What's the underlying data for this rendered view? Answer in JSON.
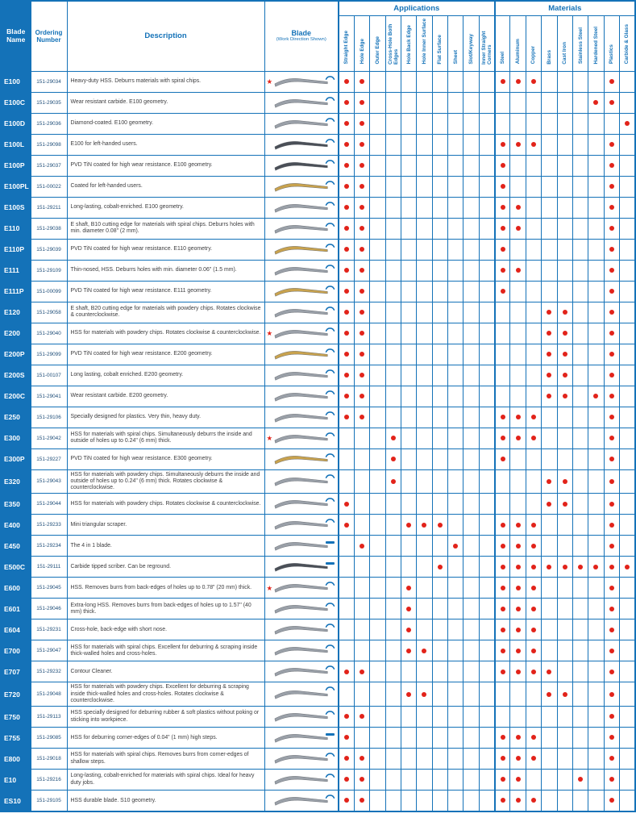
{
  "colors": {
    "accent": "#1472b8",
    "dot": "#e2231a",
    "star": "#e2231a",
    "name_bg": "#1472b8",
    "blade_steel": "#9aa0a8",
    "blade_gold": "#c8a24e",
    "blade_dark": "#4a4f57"
  },
  "header": {
    "blade_name": "Blade Name",
    "ordering_number": "Ordering Number",
    "description": "Description",
    "blade": "Blade",
    "blade_sub": "(Work Direction Shown)",
    "applications": "Applications",
    "materials": "Materials"
  },
  "columns": {
    "applications": [
      "Straight Edge",
      "Hole Edge",
      "Outer Edge",
      "Cross-Hole Both Edges",
      "Hole Back Edge",
      "Hole Inner Surface",
      "Flat Surface",
      "Sheet",
      "Slot/Keyway",
      "Inner Straight Corners"
    ],
    "materials": [
      "Steel",
      "Aluminum",
      "Copper",
      "Brass",
      "Cast Iron",
      "Stainless Steel",
      "Hardened Steel",
      "Plastics",
      "Carbide & Glass"
    ]
  },
  "rows": [
    {
      "name": "E100",
      "order": "151-29034",
      "desc": "Heavy-duty HSS. Deburrs materials with spiral chips.",
      "color": "steel",
      "dir": "arc",
      "star": true,
      "apps": [
        0,
        1
      ],
      "mats": [
        0,
        1,
        2,
        7
      ]
    },
    {
      "name": "E100C",
      "order": "151-29035",
      "desc": "Wear resistant carbide. E100 geometry.",
      "color": "steel",
      "dir": "arc",
      "star": false,
      "apps": [
        0,
        1
      ],
      "mats": [
        6,
        7
      ]
    },
    {
      "name": "E100D",
      "order": "151-29036",
      "desc": "Diamond-coated. E100 geometry.",
      "color": "steel",
      "dir": "arc",
      "star": false,
      "apps": [
        0,
        1
      ],
      "mats": [
        8
      ]
    },
    {
      "name": "E100L",
      "order": "151-29098",
      "desc": "E100 for left-handed users.",
      "color": "dark",
      "dir": "arc",
      "star": false,
      "apps": [
        0,
        1
      ],
      "mats": [
        0,
        1,
        2,
        7
      ]
    },
    {
      "name": "E100P",
      "order": "151-29037",
      "desc": "PVD TiN coated for high wear resistance. E100 geometry.",
      "color": "dark",
      "dir": "arc",
      "star": false,
      "apps": [
        0,
        1
      ],
      "mats": [
        0,
        7
      ]
    },
    {
      "name": "E100PL",
      "order": "151-00022",
      "desc": "Coated for left-handed users.",
      "color": "gold",
      "dir": "arc",
      "star": false,
      "apps": [
        0,
        1
      ],
      "mats": [
        0,
        7
      ]
    },
    {
      "name": "E100S",
      "order": "151-29211",
      "desc": "Long-lasting, cobalt-enriched. E100 geometry.",
      "color": "steel",
      "dir": "arc",
      "star": false,
      "apps": [
        0,
        1
      ],
      "mats": [
        0,
        1,
        7
      ]
    },
    {
      "name": "E110",
      "order": "151-29038",
      "desc": "E shaft, B10 cutting edge for materials with spiral chips. Deburrs holes with min. diameter 0.08\" (2 mm).",
      "color": "steel",
      "dir": "arc",
      "star": false,
      "apps": [
        0,
        1
      ],
      "mats": [
        0,
        1,
        7
      ]
    },
    {
      "name": "E110P",
      "order": "151-29039",
      "desc": "PVD TiN coated for high wear resistance. E110 geometry.",
      "color": "gold",
      "dir": "arc",
      "star": false,
      "apps": [
        0,
        1
      ],
      "mats": [
        0,
        7
      ]
    },
    {
      "name": "E111",
      "order": "151-29109",
      "desc": "Thin-nosed, HSS. Deburrs holes with min. diameter 0.06\" (1.5 mm).",
      "color": "steel",
      "dir": "arc",
      "star": false,
      "apps": [
        0,
        1
      ],
      "mats": [
        0,
        1,
        7
      ]
    },
    {
      "name": "E111P",
      "order": "151-00099",
      "desc": "PVD TiN coated for high wear resistance. E111 geometry.",
      "color": "gold",
      "dir": "arc",
      "star": false,
      "apps": [
        0,
        1
      ],
      "mats": [
        0,
        7
      ]
    },
    {
      "name": "E120",
      "order": "151-29058",
      "desc": "E shaft, B20 cutting edge for materials with powdery chips. Rotates clockwise & counterclockwise.",
      "color": "steel",
      "dir": "arc",
      "star": false,
      "apps": [
        0,
        1
      ],
      "mats": [
        3,
        4,
        7
      ]
    },
    {
      "name": "E200",
      "order": "151-29040",
      "desc": "HSS for materials with powdery chips. Rotates clockwise & counterclockwise.",
      "color": "steel",
      "dir": "arc",
      "star": true,
      "apps": [
        0,
        1
      ],
      "mats": [
        3,
        4,
        7
      ]
    },
    {
      "name": "E200P",
      "order": "151-29099",
      "desc": "PVD TiN coated for high wear resistance. E200 geometry.",
      "color": "gold",
      "dir": "arc",
      "star": false,
      "apps": [
        0,
        1
      ],
      "mats": [
        3,
        4,
        7
      ]
    },
    {
      "name": "E200S",
      "order": "151-00107",
      "desc": "Long lasting, cobalt enriched. E200 geometry.",
      "color": "steel",
      "dir": "arc",
      "star": false,
      "apps": [
        0,
        1
      ],
      "mats": [
        3,
        4,
        7
      ]
    },
    {
      "name": "E200C",
      "order": "151-29041",
      "desc": "Wear resistant carbide. E200 geometry.",
      "color": "steel",
      "dir": "arc",
      "star": false,
      "apps": [
        0,
        1
      ],
      "mats": [
        3,
        4,
        6,
        7
      ]
    },
    {
      "name": "E250",
      "order": "151-29106",
      "desc": "Specially designed for plastics. Very thin, heavy duty.",
      "color": "steel",
      "dir": "arc",
      "star": false,
      "apps": [
        0,
        1
      ],
      "mats": [
        0,
        1,
        2,
        7
      ]
    },
    {
      "name": "E300",
      "order": "151-29042",
      "desc": "HSS for materials with spiral chips. Simultaneously deburrs the inside and outside of holes up to 0.24\" (6 mm) thick.",
      "color": "steel",
      "dir": "arc",
      "star": true,
      "apps": [
        3
      ],
      "mats": [
        0,
        1,
        2,
        7
      ]
    },
    {
      "name": "E300P",
      "order": "151-29227",
      "desc": "PVD TiN coated for high wear resistance. E300 geometry.",
      "color": "gold",
      "dir": "arc",
      "star": false,
      "apps": [
        3
      ],
      "mats": [
        0,
        7
      ]
    },
    {
      "name": "E320",
      "order": "151-29043",
      "desc": "HSS for materials with powdery chips. Simultaneously deburrs the inside and outside of holes up to 0.24\" (6 mm) thick. Rotates clockwise & counterclockwise.",
      "color": "steel",
      "dir": "arc",
      "star": false,
      "apps": [
        3
      ],
      "mats": [
        3,
        4,
        7
      ]
    },
    {
      "name": "E350",
      "order": "151-29044",
      "desc": "HSS for materials with powdery chips. Rotates clockwise & counterclockwise.",
      "color": "steel",
      "dir": "arc",
      "star": false,
      "apps": [
        0
      ],
      "mats": [
        3,
        4,
        7
      ]
    },
    {
      "name": "E400",
      "order": "151-29233",
      "desc": "Mini triangular scraper.",
      "color": "steel",
      "dir": "arc",
      "star": false,
      "apps": [
        0,
        4,
        5,
        6
      ],
      "mats": [
        0,
        1,
        2,
        7
      ]
    },
    {
      "name": "E450",
      "order": "151-29234",
      "desc": "The 4 in 1 blade.",
      "color": "steel",
      "dir": "dash",
      "star": false,
      "apps": [
        1,
        7
      ],
      "mats": [
        0,
        1,
        2,
        7
      ]
    },
    {
      "name": "E500C",
      "order": "151-29111",
      "desc": "Carbide tipped scriber. Can be reground.",
      "color": "dark",
      "dir": "dash",
      "star": false,
      "apps": [
        6
      ],
      "mats": [
        0,
        1,
        2,
        3,
        4,
        5,
        6,
        7,
        8
      ]
    },
    {
      "name": "E600",
      "order": "151-29045",
      "desc": "HSS. Removes burrs from back-edges of holes up to 0.78\" (20 mm) thick.",
      "color": "steel",
      "dir": "arc",
      "star": true,
      "apps": [
        4
      ],
      "mats": [
        0,
        1,
        2,
        7
      ]
    },
    {
      "name": "E601",
      "order": "151-29046",
      "desc": "Extra-long HSS. Removes burrs from back-edges of holes up to 1.57\" (40 mm) thick.",
      "color": "steel",
      "dir": "arc",
      "star": false,
      "apps": [
        4
      ],
      "mats": [
        0,
        1,
        2,
        7
      ]
    },
    {
      "name": "E604",
      "order": "151-29231",
      "desc": "Cross-hole, back-edge with short nose.",
      "color": "steel",
      "dir": "arc",
      "star": false,
      "apps": [
        4
      ],
      "mats": [
        0,
        1,
        2,
        7
      ]
    },
    {
      "name": "E700",
      "order": "151-29047",
      "desc": "HSS for materials with spiral chips. Excellent for deburring & scraping inside thick-walled holes and cross-holes.",
      "color": "steel",
      "dir": "arc",
      "star": false,
      "apps": [
        4,
        5
      ],
      "mats": [
        0,
        1,
        2,
        7
      ]
    },
    {
      "name": "E707",
      "order": "151-29232",
      "desc": "Contour Cleaner.",
      "color": "steel",
      "dir": "arc",
      "star": false,
      "apps": [
        0,
        1
      ],
      "mats": [
        0,
        1,
        2,
        3,
        7
      ]
    },
    {
      "name": "E720",
      "order": "151-29048",
      "desc": "HSS for materials with powdery chips. Excellent for deburring & scraping inside thick-walled holes and cross-holes. Rotates clockwise & counterclockwise.",
      "color": "steel",
      "dir": "arc",
      "star": false,
      "apps": [
        4,
        5
      ],
      "mats": [
        3,
        4,
        7
      ]
    },
    {
      "name": "E750",
      "order": "151-29113",
      "desc": "HSS specially designed for deburring rubber & soft plastics without poking or sticking into workpiece.",
      "color": "steel",
      "dir": "arc",
      "star": false,
      "apps": [
        0,
        1
      ],
      "mats": [
        7
      ]
    },
    {
      "name": "E755",
      "order": "151-29085",
      "desc": "HSS for deburring corner-edges of 0.04\" (1 mm) high steps.",
      "color": "steel",
      "dir": "dash",
      "star": false,
      "apps": [
        0
      ],
      "mats": [
        0,
        1,
        2,
        7
      ]
    },
    {
      "name": "E800",
      "order": "151-29018",
      "desc": "HSS for materials with spiral chips. Removes burrs from corner-edges of shallow steps.",
      "color": "steel",
      "dir": "arc",
      "star": false,
      "apps": [
        0,
        1
      ],
      "mats": [
        0,
        1,
        2,
        7
      ]
    },
    {
      "name": "E10",
      "order": "151-29216",
      "desc": "Long-lasting, cobalt-enriched for materials with spiral chips. Ideal for heavy duty jobs.",
      "color": "steel",
      "dir": "arc",
      "star": false,
      "apps": [
        0,
        1
      ],
      "mats": [
        0,
        1,
        5,
        7
      ]
    },
    {
      "name": "ES10",
      "order": "151-29105",
      "desc": "HSS durable blade. S10 geometry.",
      "color": "steel",
      "dir": "arc",
      "star": false,
      "apps": [
        0,
        1
      ],
      "mats": [
        0,
        1,
        2,
        7
      ]
    }
  ]
}
